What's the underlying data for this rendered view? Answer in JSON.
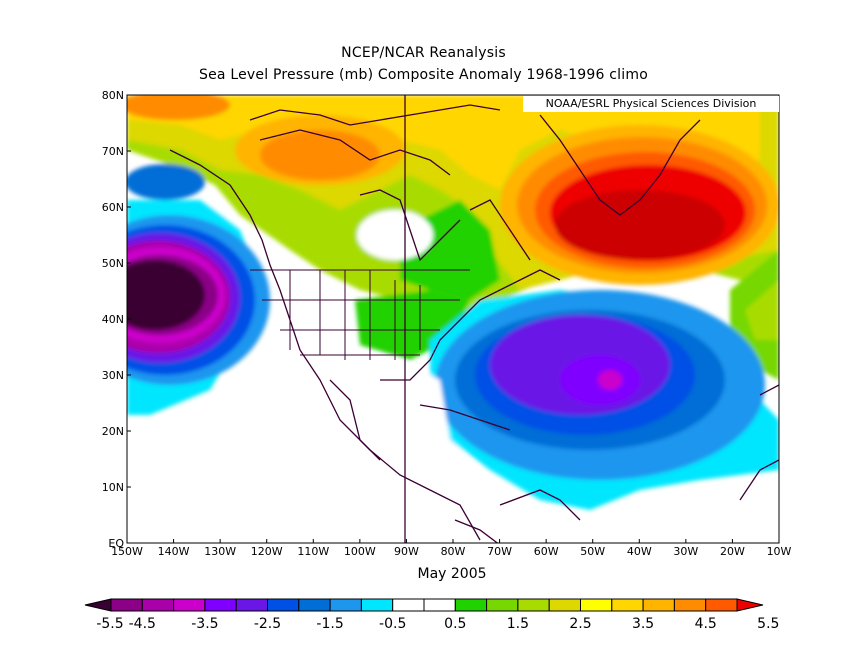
{
  "title": {
    "line1": "NCEP/NCAR Reanalysis",
    "line2": "Sea Level Pressure (mb) Composite Anomaly 1968-1996 climo"
  },
  "credit": "NOAA/ESRL Physical Sciences Division",
  "date_label": "May 2005",
  "axes": {
    "lon_labels": [
      "150W",
      "140W",
      "130W",
      "120W",
      "110W",
      "100W",
      "90W",
      "80W",
      "70W",
      "60W",
      "50W",
      "40W",
      "30W",
      "20W",
      "10W"
    ],
    "lat_labels": [
      "EQ",
      "10N",
      "20N",
      "30N",
      "40N",
      "50N",
      "60N",
      "70N",
      "80N"
    ],
    "lon_range": [
      -150,
      -10
    ],
    "lat_range": [
      0,
      80
    ]
  },
  "colorbar": {
    "labels": [
      "-5.5",
      "-4.5",
      "-3.5",
      "-2.5",
      "-1.5",
      "-0.5",
      "0.5",
      "1.5",
      "2.5",
      "3.5",
      "4.5",
      "5.5"
    ],
    "colors": [
      "#3a0033",
      "#8c0088",
      "#aa00aa",
      "#cc00cc",
      "#8000ff",
      "#6a16e6",
      "#0050e6",
      "#006ed6",
      "#1e96ee",
      "#00e6ff",
      "#ffffff",
      "#ffffff",
      "#20d200",
      "#76d800",
      "#a8dc00",
      "#dcd800",
      "#ffff00",
      "#ffd600",
      "#ffb400",
      "#ff8c00",
      "#ff5a00",
      "#ee0000"
    ]
  },
  "anomaly_blobs": [
    {
      "name": "NE Pacific low",
      "lon": -143,
      "lat": 44,
      "peak": -5.5
    },
    {
      "name": "Subtropical Atlantic low",
      "lon": -46,
      "lat": 29,
      "peak": -4.5
    },
    {
      "name": "Greenland high",
      "lon": -35,
      "lat": 62,
      "peak": 5.5
    },
    {
      "name": "Canadian Arctic high",
      "lon": -110,
      "lat": 67,
      "peak": 4.0
    }
  ]
}
